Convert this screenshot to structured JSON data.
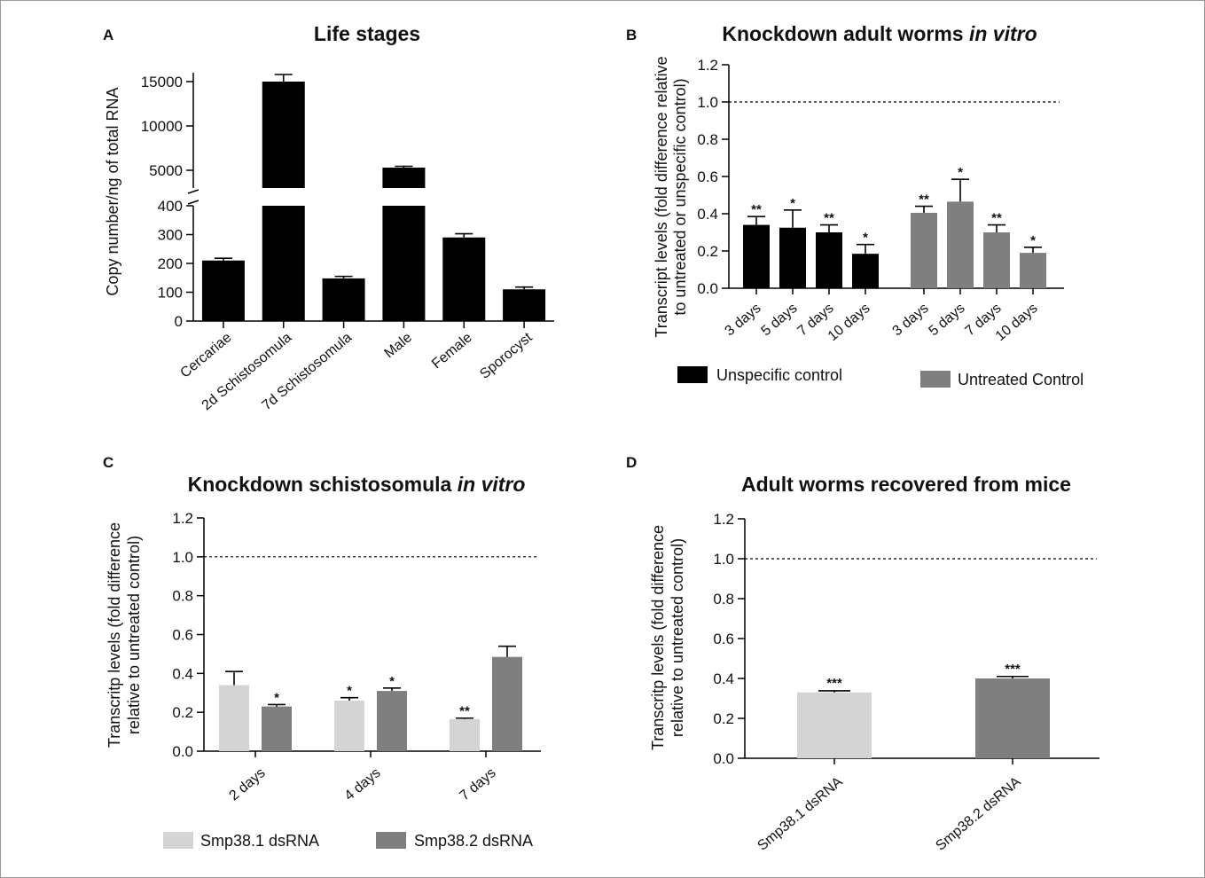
{
  "chart_data": [
    {
      "panel": "A",
      "type": "bar",
      "title": "Life stages",
      "ylabel": "Copy number/ng of total RNA",
      "broken_axis": {
        "lower_ticks": [
          "0",
          "100",
          "200",
          "300",
          "400"
        ],
        "upper_ticks": [
          "5000",
          "10000",
          "15000"
        ],
        "lower_range": [
          0,
          400
        ],
        "upper_range": [
          2500,
          16000
        ]
      },
      "categories": [
        "Cercariae",
        "2d Schistosomula",
        "7d Schistosomula",
        "Male",
        "Female",
        "Sporocyst"
      ],
      "values": [
        210,
        15000,
        148,
        5300,
        290,
        110
      ],
      "errors": [
        8,
        800,
        7,
        150,
        13,
        8
      ],
      "color": "#000000"
    },
    {
      "panel": "B",
      "type": "bar",
      "title_main": "Knockdown adult worms ",
      "title_italic": "in vitro",
      "ylabel_lines": [
        "Transcript levels (fold difference relative",
        "to untreated or unspecific control)"
      ],
      "ylim": [
        0,
        1.2
      ],
      "yticks": [
        "0.0",
        "0.2",
        "0.4",
        "0.6",
        "0.8",
        "1.0",
        "1.2"
      ],
      "reference_line": 1.0,
      "series": [
        {
          "name": "Unspecific control",
          "color": "#000000",
          "categories": [
            "3 days",
            "5 days",
            "7 days",
            "10 days"
          ],
          "values": [
            0.34,
            0.325,
            0.3,
            0.185
          ],
          "errors": [
            0.045,
            0.095,
            0.04,
            0.05
          ],
          "stars": [
            "**",
            "*",
            "**",
            "*"
          ]
        },
        {
          "name": "Untreated Control",
          "color": "#7f7f7f",
          "categories": [
            "3 days",
            "5 days",
            "7 days",
            "10 days"
          ],
          "values": [
            0.405,
            0.465,
            0.3,
            0.19
          ],
          "errors": [
            0.035,
            0.12,
            0.04,
            0.03
          ],
          "stars": [
            "**",
            "*",
            "**",
            "*"
          ]
        }
      ]
    },
    {
      "panel": "C",
      "type": "bar",
      "title_main": "Knockdown schistosomula ",
      "title_italic": "in vitro",
      "ylabel_lines": [
        "Transcritp levels (fold difference",
        "relative to untreated control)"
      ],
      "ylim": [
        0,
        1.2
      ],
      "yticks": [
        "0.0",
        "0.2",
        "0.4",
        "0.6",
        "0.8",
        "1.0",
        "1.2"
      ],
      "reference_line": 1.0,
      "categories": [
        "2 days",
        "4 days",
        "7 days"
      ],
      "series": [
        {
          "name": "Smp38.1 dsRNA",
          "color": "#d4d4d4",
          "values": [
            0.34,
            0.26,
            0.165
          ],
          "errors": [
            0.07,
            0.015,
            0.005
          ],
          "stars": [
            "",
            "*",
            "**"
          ]
        },
        {
          "name": "Smp38.2 dsRNA",
          "color": "#7f7f7f",
          "values": [
            0.23,
            0.31,
            0.485
          ],
          "errors": [
            0.01,
            0.015,
            0.055
          ],
          "stars": [
            "*",
            "*",
            ""
          ]
        }
      ]
    },
    {
      "panel": "D",
      "type": "bar",
      "title": "Adult worms recovered from mice",
      "ylabel_lines": [
        "Transcritp levels (fold difference",
        "relative to untreated control)"
      ],
      "ylim": [
        0,
        1.2
      ],
      "yticks": [
        "0.0",
        "0.2",
        "0.4",
        "0.6",
        "0.8",
        "1.0",
        "1.2"
      ],
      "reference_line": 1.0,
      "categories": [
        "Smp38.1 dsRNA",
        "Smp38.2 dsRNA"
      ],
      "values": [
        0.33,
        0.4
      ],
      "errors": [
        0.008,
        0.01
      ],
      "stars": [
        "***",
        "***"
      ],
      "colors": [
        "#d4d4d4",
        "#7f7f7f"
      ]
    }
  ]
}
